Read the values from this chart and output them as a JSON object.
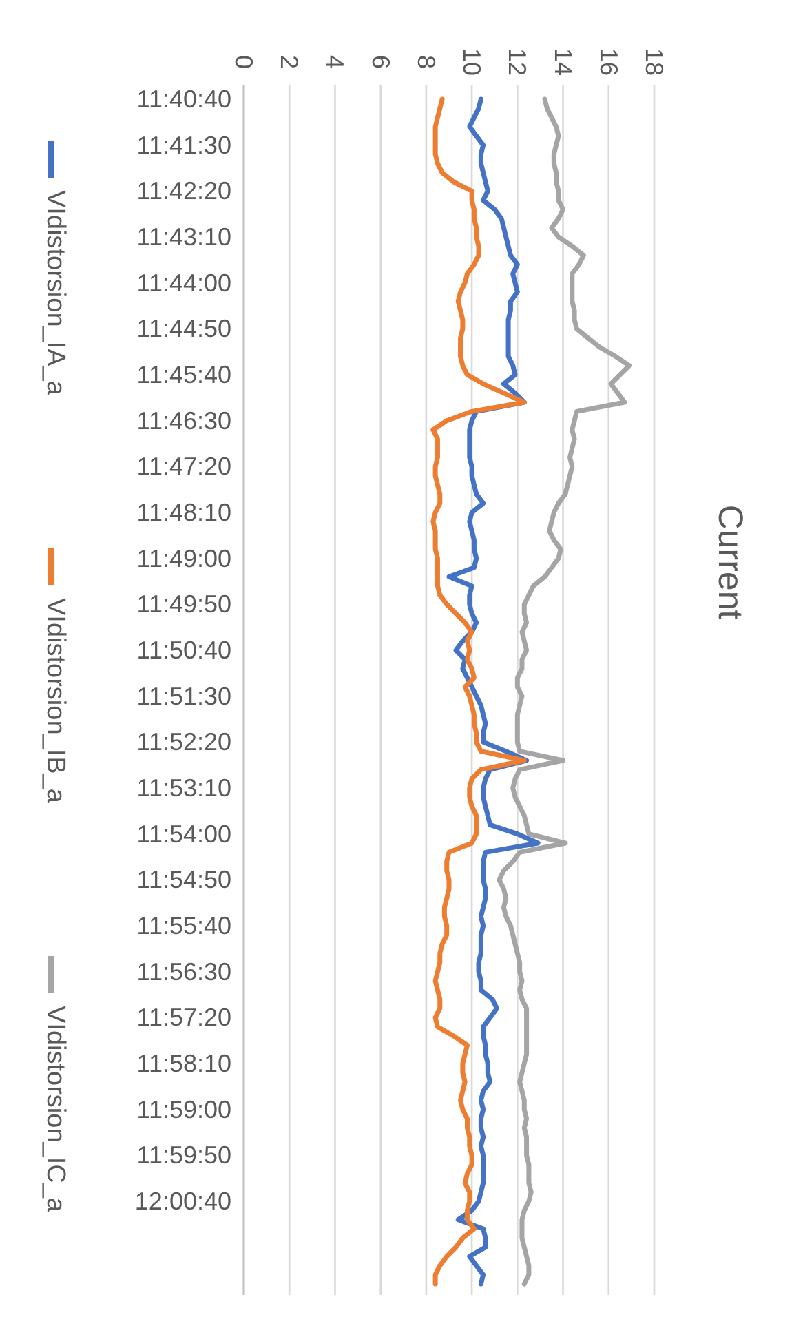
{
  "chart_data": {
    "type": "line",
    "title": "Current",
    "categories": [
      "11:40:40",
      null,
      null,
      null,
      null,
      "11:41:30",
      null,
      null,
      null,
      null,
      "11:42:20",
      null,
      null,
      null,
      null,
      "11:43:10",
      null,
      null,
      null,
      null,
      "11:44:00",
      null,
      null,
      null,
      null,
      "11:44:50",
      null,
      null,
      null,
      null,
      "11:45:40",
      null,
      null,
      null,
      null,
      "11:46:30",
      null,
      null,
      null,
      null,
      "11:47:20",
      null,
      null,
      null,
      null,
      "11:48:10",
      null,
      null,
      null,
      null,
      "11:49:00",
      null,
      null,
      null,
      null,
      "11:49:50",
      null,
      null,
      null,
      null,
      "11:50:40",
      null,
      null,
      null,
      null,
      "11:51:30",
      null,
      null,
      null,
      null,
      "11:52:20",
      null,
      null,
      null,
      null,
      "11:53:10",
      null,
      null,
      null,
      null,
      "11:54:00",
      null,
      null,
      null,
      null,
      "11:54:50",
      null,
      null,
      null,
      null,
      "11:55:40",
      null,
      null,
      null,
      null,
      "11:56:30",
      null,
      null,
      null,
      null,
      "11:57:20",
      null,
      null,
      null,
      null,
      "11:58:10",
      null,
      null,
      null,
      null,
      "11:59:00",
      null,
      null,
      null,
      null,
      "11:59:50",
      null,
      null,
      null,
      null,
      "12:00:40",
      null,
      null,
      null,
      null,
      null,
      null,
      null,
      null,
      null
    ],
    "series": [
      {
        "name": "VIdistorsion_IA_a",
        "color": "#4472c4",
        "values": [
          10.4,
          10.3,
          10.1,
          9.9,
          10.2,
          10.5,
          10.4,
          10.4,
          10.5,
          10.6,
          10.7,
          10.5,
          11.0,
          11.3,
          11.4,
          11.5,
          11.6,
          11.7,
          12.0,
          11.8,
          11.9,
          12.0,
          11.7,
          11.7,
          11.6,
          11.6,
          11.6,
          11.6,
          11.6,
          11.8,
          11.9,
          11.4,
          11.9,
          12.3,
          10.2,
          10.0,
          9.9,
          9.9,
          9.9,
          9.9,
          10.0,
          10.0,
          10.1,
          10.2,
          10.5,
          10.0,
          9.9,
          10.0,
          10.1,
          10.1,
          10.2,
          10.1,
          9.0,
          10.0,
          9.9,
          9.9,
          10.0,
          10.2,
          10.0,
          9.6,
          9.3,
          9.7,
          9.6,
          9.8,
          10.0,
          10.2,
          10.4,
          10.5,
          10.6,
          10.5,
          10.5,
          11.5,
          12.4,
          10.8,
          10.6,
          10.5,
          10.5,
          10.6,
          10.7,
          10.8,
          12.0,
          12.9,
          10.6,
          10.5,
          10.5,
          10.5,
          10.6,
          10.6,
          10.5,
          10.4,
          10.5,
          10.4,
          10.4,
          10.4,
          10.3,
          10.3,
          10.4,
          10.4,
          10.9,
          11.1,
          10.8,
          10.5,
          10.5,
          10.6,
          10.6,
          10.7,
          10.7,
          10.8,
          10.5,
          10.4,
          10.5,
          10.4,
          10.4,
          10.5,
          10.4,
          10.5,
          10.5,
          10.5,
          10.5,
          10.4,
          10.3,
          10.0,
          9.4,
          10.5,
          10.6,
          10.6,
          9.9,
          10.2,
          10.5,
          10.4
        ]
      },
      {
        "name": "VIdistorsion_IB_a",
        "color": "#ed7d31",
        "values": [
          8.7,
          8.6,
          8.5,
          8.4,
          8.4,
          8.4,
          8.4,
          8.5,
          8.7,
          9.2,
          10.0,
          10.0,
          10.1,
          10.1,
          10.2,
          10.2,
          10.3,
          10.3,
          10.1,
          9.8,
          9.7,
          9.5,
          9.4,
          9.5,
          9.6,
          9.6,
          9.5,
          9.5,
          9.5,
          9.6,
          9.8,
          10.5,
          11.4,
          12.3,
          10.0,
          8.9,
          8.3,
          8.5,
          8.5,
          8.5,
          8.4,
          8.4,
          8.5,
          8.6,
          8.6,
          8.4,
          8.3,
          8.4,
          8.4,
          8.4,
          8.5,
          8.5,
          8.5,
          8.5,
          8.6,
          8.9,
          9.3,
          9.7,
          10.0,
          9.8,
          9.9,
          9.8,
          10.0,
          10.1,
          9.7,
          9.9,
          10.0,
          10.1,
          10.1,
          10.2,
          10.2,
          10.4,
          12.3,
          10.4,
          10.0,
          9.9,
          9.9,
          10.0,
          10.2,
          10.2,
          10.2,
          10.0,
          9.0,
          8.9,
          8.9,
          9.0,
          9.0,
          8.9,
          8.8,
          8.8,
          8.9,
          8.9,
          8.7,
          8.6,
          8.6,
          8.5,
          8.4,
          8.5,
          8.6,
          8.6,
          8.4,
          8.5,
          9.2,
          9.8,
          9.7,
          9.6,
          9.6,
          9.7,
          9.6,
          9.5,
          9.6,
          9.8,
          9.8,
          9.9,
          9.9,
          10.0,
          10.0,
          9.8,
          9.7,
          9.9,
          9.9,
          9.8,
          9.8,
          10.1,
          9.6,
          9.3,
          8.9,
          8.6,
          8.4,
          8.4
        ]
      },
      {
        "name": "VIdistorsion_IC_a",
        "color": "#a5a5a5",
        "values": [
          13.2,
          13.3,
          13.5,
          13.7,
          13.8,
          13.7,
          13.6,
          13.6,
          13.7,
          13.7,
          13.8,
          13.8,
          14.0,
          13.8,
          13.5,
          13.8,
          14.4,
          14.9,
          14.7,
          14.4,
          14.4,
          14.4,
          14.4,
          14.5,
          14.5,
          14.6,
          15.1,
          15.6,
          16.3,
          16.9,
          16.5,
          16.1,
          16.4,
          16.7,
          14.6,
          14.5,
          14.4,
          14.5,
          14.4,
          14.3,
          14.4,
          14.3,
          14.2,
          14.1,
          13.8,
          13.6,
          13.5,
          13.4,
          13.6,
          13.9,
          13.8,
          13.5,
          13.2,
          12.7,
          12.5,
          12.3,
          12.3,
          12.4,
          12.2,
          12.3,
          12.4,
          12.2,
          12.2,
          12.0,
          12.0,
          12.2,
          12.1,
          12.0,
          12.0,
          12.0,
          12.0,
          12.1,
          14.0,
          12.1,
          11.9,
          11.8,
          11.9,
          12.1,
          12.3,
          12.4,
          12.5,
          14.1,
          12.1,
          11.8,
          11.4,
          11.2,
          11.4,
          11.5,
          11.4,
          11.5,
          11.7,
          11.8,
          11.9,
          12.0,
          12.1,
          12.1,
          12.2,
          12.1,
          12.2,
          12.4,
          12.4,
          12.4,
          12.4,
          12.4,
          12.4,
          12.3,
          12.2,
          12.1,
          12.2,
          12.3,
          12.3,
          12.4,
          12.3,
          12.4,
          12.4,
          12.4,
          12.5,
          12.5,
          12.5,
          12.6,
          12.5,
          12.3,
          12.2,
          12.2,
          12.2,
          12.3,
          12.4,
          12.5,
          12.5,
          12.3
        ]
      }
    ],
    "orientation": "horizontal",
    "xlim": [
      0,
      18
    ],
    "xticks": [
      0,
      2,
      4,
      6,
      8,
      10,
      12,
      14,
      16,
      18
    ],
    "grid": "x",
    "legend": "left",
    "marker": "none",
    "line_style": "solid"
  }
}
